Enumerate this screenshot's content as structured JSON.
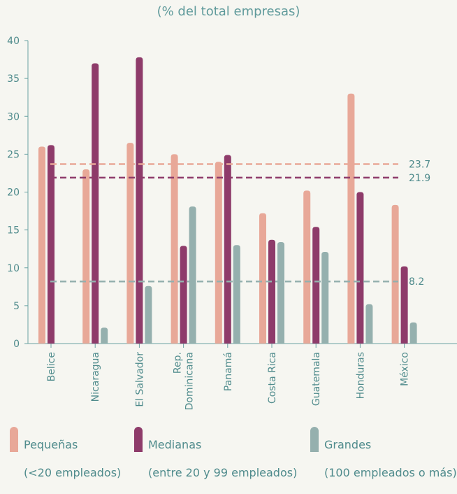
{
  "chart_data": {
    "type": "bar",
    "subtitle": "(% del total empresas)",
    "ylim": [
      0,
      40
    ],
    "yticks": [
      0,
      5,
      10,
      15,
      20,
      25,
      30,
      35,
      40
    ],
    "categories": [
      "Belice",
      "Nicaragua",
      "El Salvador",
      "Rep. Dominicana",
      "Panamá",
      "Costa Rica",
      "Guatemala",
      "Honduras",
      "México"
    ],
    "series": [
      {
        "name": "Pequeñas (<20 empleados)",
        "color": "#e8a898",
        "values": [
          26.0,
          23.0,
          26.5,
          25.0,
          24.0,
          17.2,
          20.2,
          33.0,
          18.3
        ]
      },
      {
        "name": "Medianas (entre 20 y 99 empleados)",
        "color": "#8e3b6a",
        "values": [
          26.2,
          37.0,
          37.8,
          12.9,
          24.9,
          13.7,
          15.4,
          20.0,
          10.2
        ]
      },
      {
        "name": "Grandes (100 empleados o más)",
        "color": "#95b0ae",
        "values": [
          null,
          2.1,
          7.6,
          18.1,
          13.0,
          13.4,
          12.1,
          5.2,
          2.8
        ]
      }
    ],
    "reference_lines": [
      {
        "value": 23.7,
        "label": "23.7",
        "color": "#e8a898"
      },
      {
        "value": 21.9,
        "label": "21.9",
        "color": "#8e3b6a"
      },
      {
        "value": 8.2,
        "label": "8.2",
        "color": "#95b0ae"
      }
    ],
    "grid": false,
    "legend_position": "bottom"
  },
  "legend": [
    {
      "color": "#e8a898",
      "line1": "Pequeñas",
      "line2": "(<20 empleados)"
    },
    {
      "color": "#8e3b6a",
      "line1": "Medianas",
      "line2": "(entre 20 y 99 empleados)"
    },
    {
      "color": "#95b0ae",
      "line1": "Grandes",
      "line2": "(100 empleados o más)"
    }
  ],
  "colors": {
    "axis": "#6aa2a3",
    "text": "#4f8b8c",
    "background": "#f6f6f1"
  }
}
